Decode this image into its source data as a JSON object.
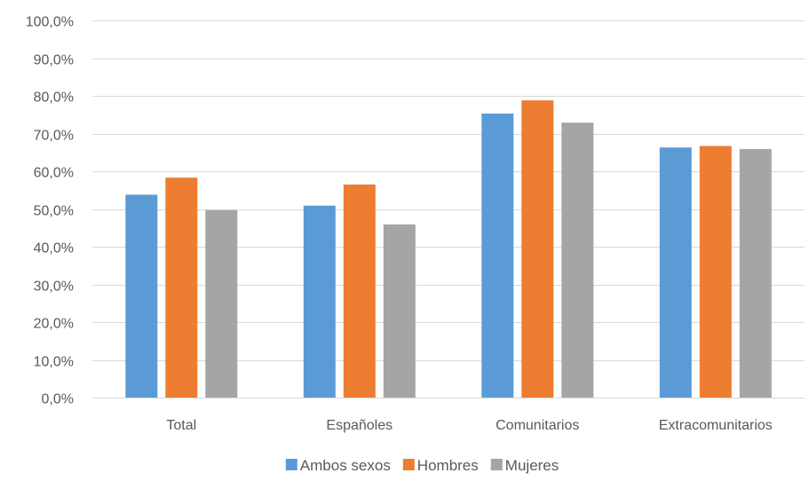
{
  "chart_data": {
    "type": "bar",
    "categories": [
      "Total",
      "Españoles",
      "Comunitarios",
      "Extracomunitarios"
    ],
    "series": [
      {
        "name": "Ambos sexos",
        "color": "#5B9BD5",
        "values": [
          53.8,
          50.9,
          75.3,
          66.3
        ]
      },
      {
        "name": "Hombres",
        "color": "#ED7D31",
        "values": [
          58.3,
          56.5,
          78.8,
          66.7
        ]
      },
      {
        "name": "Mujeres",
        "color": "#A5A5A5",
        "values": [
          49.7,
          45.9,
          72.9,
          65.9
        ]
      }
    ],
    "ylim": [
      0,
      100
    ],
    "yticks": [
      0,
      10,
      20,
      30,
      40,
      50,
      60,
      70,
      80,
      90,
      100
    ],
    "ytick_labels": [
      "0,0%",
      "10,0%",
      "20,0%",
      "30,0%",
      "40,0%",
      "50,0%",
      "60,0%",
      "70,0%",
      "80,0%",
      "90,0%",
      "100,0%"
    ],
    "grid": true,
    "legend": "bottom"
  }
}
